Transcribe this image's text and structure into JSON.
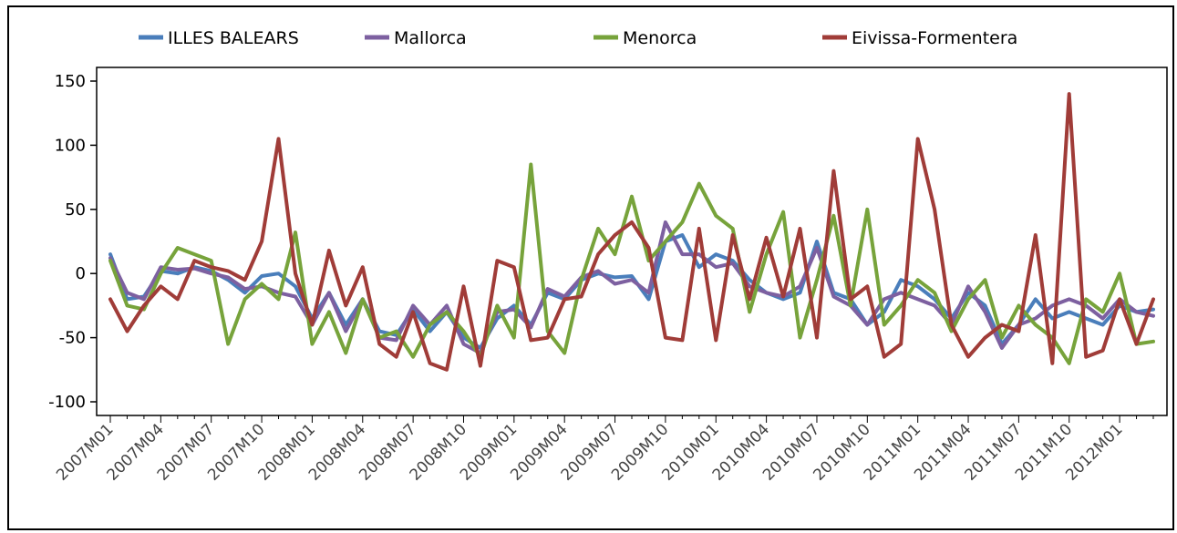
{
  "chart_data": {
    "type": "line",
    "title": "",
    "xlabel": "",
    "ylabel": "",
    "ylim": [
      -100,
      150
    ],
    "yticks": [
      -100,
      -50,
      0,
      50,
      100,
      150
    ],
    "grid": false,
    "legend_position": "top",
    "x": [
      "2007M01",
      "2007M02",
      "2007M03",
      "2007M04",
      "2007M05",
      "2007M06",
      "2007M07",
      "2007M08",
      "2007M09",
      "2007M10",
      "2007M11",
      "2007M12",
      "2008M01",
      "2008M02",
      "2008M03",
      "2008M04",
      "2008M05",
      "2008M06",
      "2008M07",
      "2008M08",
      "2008M09",
      "2008M10",
      "2008M11",
      "2008M12",
      "2009M01",
      "2009M02",
      "2009M03",
      "2009M04",
      "2009M05",
      "2009M06",
      "2009M07",
      "2009M08",
      "2009M09",
      "2009M10",
      "2009M11",
      "2009M12",
      "2010M01",
      "2010M02",
      "2010M03",
      "2010M04",
      "2010M05",
      "2010M06",
      "2010M07",
      "2010M08",
      "2010M09",
      "2010M10",
      "2010M11",
      "2010M12",
      "2011M01",
      "2011M02",
      "2011M03",
      "2011M04",
      "2011M05",
      "2011M06",
      "2011M07",
      "2011M08",
      "2011M09",
      "2011M10",
      "2011M11",
      "2011M12",
      "2012M01",
      "2012M02",
      "2012M03"
    ],
    "x_tick_labels": [
      "2007M01",
      "2007M04",
      "2007M07",
      "2007M10",
      "2008M01",
      "2008M04",
      "2008M07",
      "2008M10",
      "2009M01",
      "2009M04",
      "2009M07",
      "2009M10",
      "2010M01",
      "2010M04",
      "2010M07",
      "2010M10",
      "2011M01",
      "2011M04",
      "2011M07",
      "2011M10",
      "2012M01"
    ],
    "series": [
      {
        "name": "ILLES BALEARS",
        "color": "#4a7ebb",
        "values": [
          15,
          -20,
          -18,
          2,
          0,
          5,
          2,
          -5,
          -15,
          -2,
          0,
          -10,
          -35,
          -15,
          -40,
          -20,
          -45,
          -48,
          -28,
          -45,
          -30,
          -50,
          -58,
          -35,
          -25,
          -40,
          -15,
          -20,
          -5,
          0,
          -3,
          -2,
          -20,
          25,
          30,
          5,
          15,
          10,
          -5,
          -15,
          -20,
          -15,
          25,
          -15,
          -20,
          -40,
          -30,
          -5,
          -10,
          -20,
          -35,
          -15,
          -25,
          -55,
          -40,
          -20,
          -35,
          -30,
          -35,
          -40,
          -25,
          -30,
          -28
        ]
      },
      {
        "name": "Mallorca",
        "color": "#7d60a0",
        "values": [
          12,
          -15,
          -20,
          5,
          3,
          4,
          0,
          -3,
          -12,
          -10,
          -15,
          -18,
          -40,
          -15,
          -45,
          -20,
          -50,
          -52,
          -25,
          -40,
          -25,
          -55,
          -62,
          -30,
          -28,
          -42,
          -12,
          -18,
          -3,
          2,
          -8,
          -5,
          -15,
          40,
          15,
          15,
          5,
          8,
          -10,
          -15,
          -18,
          -10,
          20,
          -18,
          -25,
          -40,
          -20,
          -15,
          -20,
          -25,
          -40,
          -10,
          -30,
          -58,
          -40,
          -35,
          -25,
          -20,
          -25,
          -35,
          -20,
          -30,
          -33
        ]
      },
      {
        "name": "Menorca",
        "color": "#77a33b",
        "values": [
          10,
          -25,
          -28,
          0,
          20,
          15,
          10,
          -55,
          -20,
          -8,
          -20,
          32,
          -55,
          -30,
          -62,
          -20,
          -50,
          -45,
          -65,
          -40,
          -30,
          -45,
          -65,
          -25,
          -50,
          85,
          -45,
          -62,
          -5,
          35,
          15,
          60,
          10,
          25,
          40,
          70,
          45,
          35,
          -30,
          15,
          48,
          -50,
          -5,
          45,
          -25,
          50,
          -40,
          -25,
          -5,
          -15,
          -45,
          -20,
          -5,
          -50,
          -25,
          -40,
          -50,
          -70,
          -20,
          -30,
          0,
          -55,
          -53
        ]
      },
      {
        "name": "Eivissa-Formentera",
        "color": "#a03c38",
        "values": [
          -20,
          -45,
          -25,
          -10,
          -20,
          10,
          5,
          2,
          -5,
          25,
          105,
          0,
          -40,
          18,
          -25,
          5,
          -55,
          -65,
          -30,
          -70,
          -75,
          -10,
          -72,
          10,
          5,
          -52,
          -50,
          -20,
          -18,
          15,
          30,
          40,
          20,
          -50,
          -52,
          35,
          -52,
          30,
          -20,
          28,
          -18,
          35,
          -50,
          80,
          -20,
          -10,
          -65,
          -55,
          105,
          50,
          -40,
          -65,
          -50,
          -40,
          -45,
          30,
          -70,
          140,
          -65,
          -60,
          -20,
          -55,
          -20
        ]
      }
    ]
  }
}
